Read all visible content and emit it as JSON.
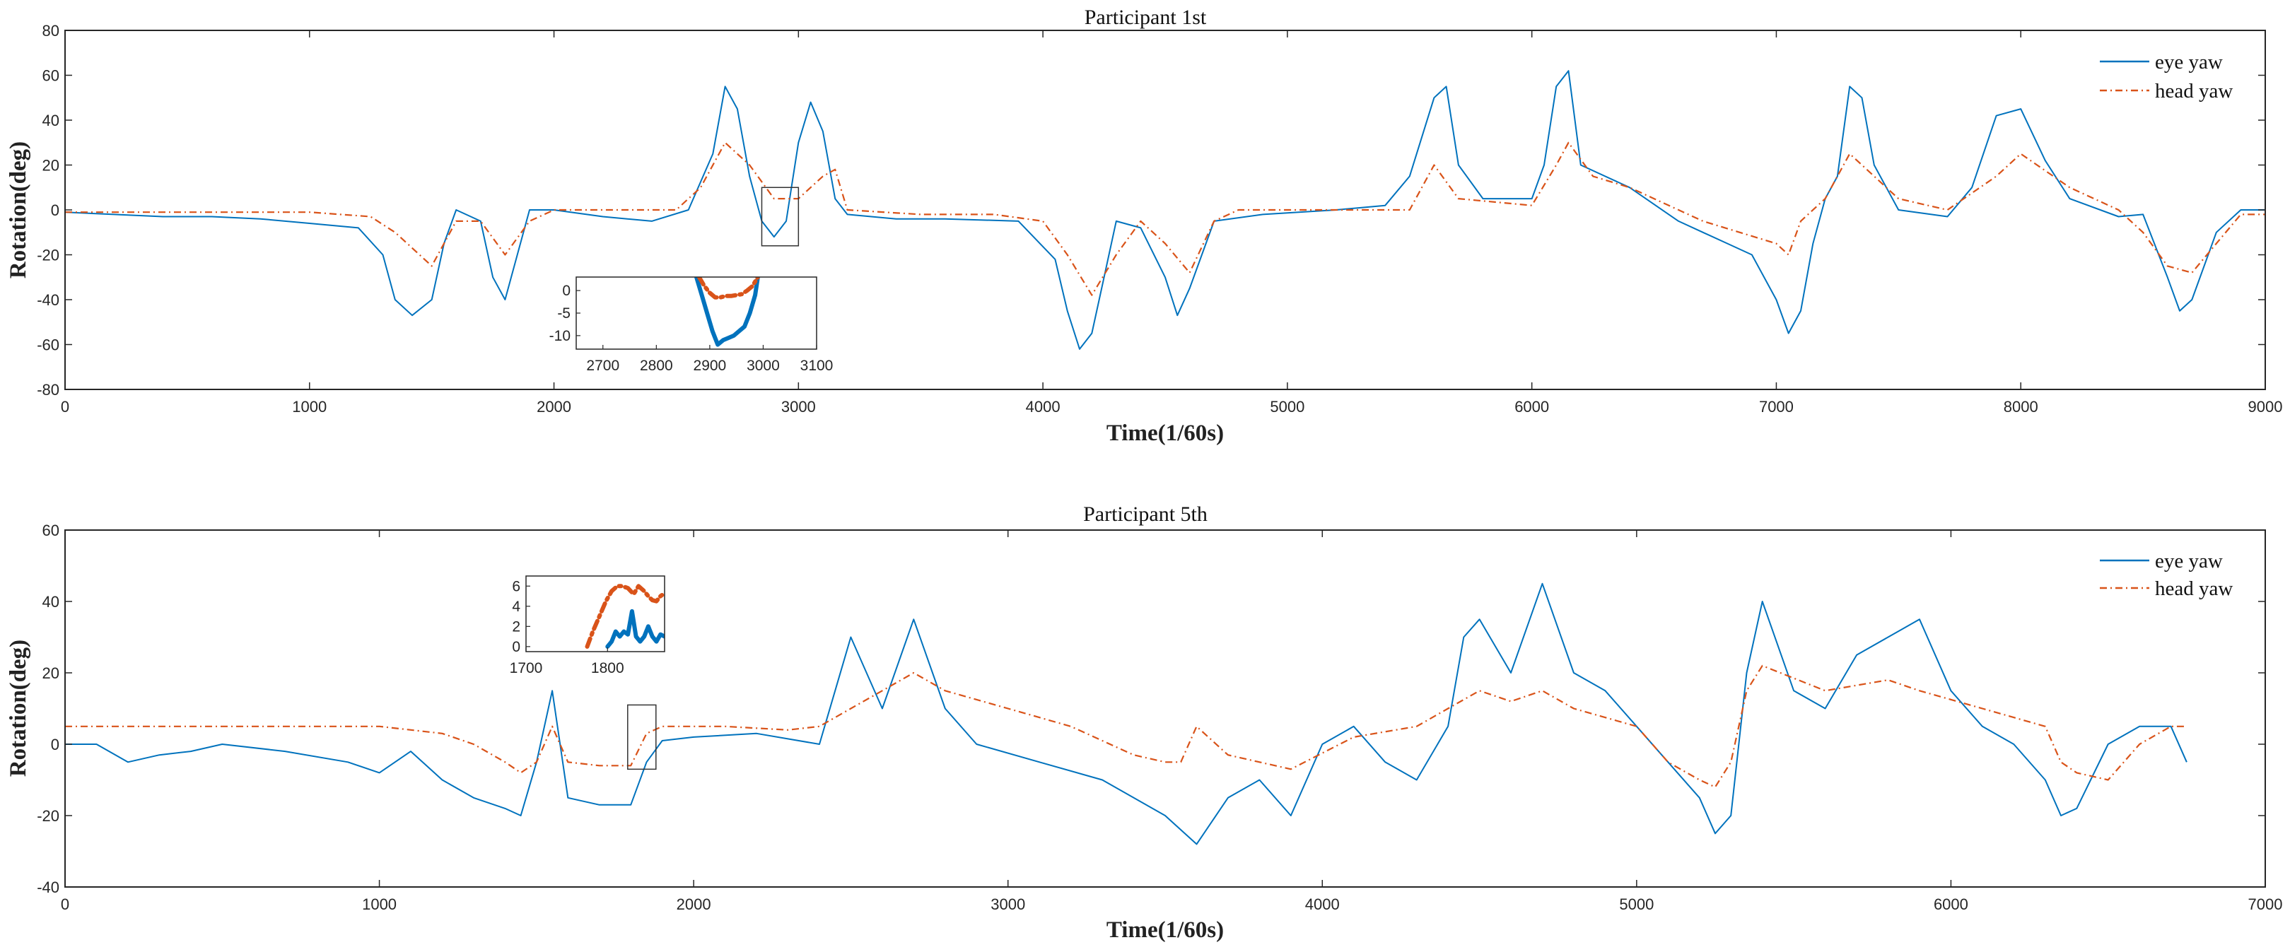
{
  "chart_data": [
    {
      "type": "line",
      "title": "Participant 1st",
      "xlabel": "Time(1/60s)",
      "ylabel": "Rotation(deg)",
      "xlim": [
        0,
        9000
      ],
      "ylim": [
        -80,
        80
      ],
      "xticks": [
        0,
        1000,
        2000,
        3000,
        4000,
        5000,
        6000,
        7000,
        8000,
        9000
      ],
      "yticks": [
        -80,
        -60,
        -40,
        -20,
        0,
        20,
        40,
        60,
        80
      ],
      "grid": false,
      "legend_position": "top-right",
      "series": [
        {
          "name": "eye yaw",
          "color": "#0072BD",
          "style": "solid",
          "x": [
            0,
            200,
            400,
            600,
            800,
            1000,
            1200,
            1300,
            1350,
            1420,
            1500,
            1550,
            1600,
            1700,
            1750,
            1800,
            1850,
            1900,
            2000,
            2200,
            2400,
            2550,
            2650,
            2700,
            2750,
            2800,
            2850,
            2900,
            2950,
            3000,
            3050,
            3100,
            3150,
            3200,
            3400,
            3600,
            3900,
            4050,
            4100,
            4150,
            4200,
            4250,
            4300,
            4400,
            4500,
            4550,
            4600,
            4700,
            4900,
            5200,
            5400,
            5500,
            5600,
            5650,
            5700,
            5800,
            6000,
            6050,
            6100,
            6150,
            6200,
            6400,
            6600,
            6700,
            6800,
            6900,
            7000,
            7050,
            7100,
            7150,
            7200,
            7250,
            7300,
            7350,
            7400,
            7500,
            7700,
            7800,
            7900,
            8000,
            8100,
            8200,
            8400,
            8500,
            8600,
            8650,
            8700,
            8800,
            8900,
            9000
          ],
          "y": [
            -1,
            -2,
            -3,
            -3,
            -4,
            -6,
            -8,
            -20,
            -40,
            -47,
            -40,
            -15,
            0,
            -5,
            -30,
            -40,
            -20,
            0,
            0,
            -3,
            -5,
            0,
            25,
            55,
            45,
            15,
            -5,
            -12,
            -5,
            30,
            48,
            35,
            5,
            -2,
            -4,
            -4,
            -5,
            -22,
            -45,
            -62,
            -55,
            -30,
            -5,
            -8,
            -30,
            -47,
            -35,
            -5,
            -2,
            0,
            2,
            15,
            50,
            55,
            20,
            5,
            5,
            20,
            55,
            62,
            20,
            10,
            -5,
            -10,
            -15,
            -20,
            -40,
            -55,
            -45,
            -15,
            5,
            15,
            55,
            50,
            20,
            0,
            -3,
            10,
            42,
            45,
            22,
            5,
            -3,
            -2,
            -30,
            -45,
            -40,
            -10,
            0,
            0
          ]
        },
        {
          "name": "head yaw",
          "color": "#D95319",
          "style": "dash-dot",
          "x": [
            0,
            500,
            1000,
            1250,
            1350,
            1450,
            1500,
            1600,
            1700,
            1800,
            1900,
            2000,
            2200,
            2500,
            2600,
            2700,
            2800,
            2900,
            3000,
            3100,
            3150,
            3200,
            3500,
            3800,
            4000,
            4100,
            4200,
            4300,
            4400,
            4500,
            4600,
            4700,
            4800,
            5000,
            5300,
            5500,
            5600,
            5700,
            6000,
            6100,
            6150,
            6250,
            6400,
            6700,
            7000,
            7050,
            7100,
            7200,
            7300,
            7400,
            7500,
            7700,
            7900,
            8000,
            8200,
            8400,
            8500,
            8600,
            8700,
            8800,
            8900,
            9000
          ],
          "y": [
            -1,
            -1,
            -1,
            -3,
            -10,
            -20,
            -25,
            -5,
            -5,
            -20,
            -5,
            0,
            0,
            0,
            10,
            30,
            20,
            5,
            5,
            15,
            18,
            0,
            -2,
            -2,
            -5,
            -20,
            -38,
            -20,
            -5,
            -15,
            -28,
            -5,
            0,
            0,
            0,
            0,
            20,
            5,
            2,
            20,
            30,
            15,
            10,
            -5,
            -15,
            -20,
            -5,
            5,
            25,
            15,
            5,
            0,
            15,
            25,
            10,
            0,
            -10,
            -25,
            -28,
            -15,
            -2,
            -2
          ]
        }
      ],
      "inset": {
        "xlim": [
          2650,
          3100
        ],
        "ylim": [
          -13,
          3
        ],
        "xticks": [
          2700,
          2800,
          2900,
          3000,
          3100
        ],
        "yticks": [
          -10,
          -5,
          0
        ],
        "zoom_box": {
          "x": [
            2850,
            3000
          ],
          "y": [
            -16,
            10
          ]
        },
        "series": [
          {
            "name": "eye yaw",
            "x": [
              2875,
              2885,
              2895,
              2905,
              2915,
              2925,
              2935,
              2945,
              2955,
              2965,
              2975,
              2985,
              2990
            ],
            "y": [
              3,
              -1,
              -5,
              -9,
              -12,
              -11,
              -10.5,
              -10,
              -9,
              -8,
              -5,
              -1,
              3
            ]
          },
          {
            "name": "head yaw",
            "x": [
              2880,
              2890,
              2900,
              2910,
              2920,
              2930,
              2940,
              2950,
              2960,
              2970,
              2980,
              2990
            ],
            "y": [
              3,
              1,
              -0.5,
              -1.5,
              -1.5,
              -1.2,
              -1.2,
              -1,
              -0.8,
              0,
              1,
              3
            ]
          }
        ]
      }
    },
    {
      "type": "line",
      "title": "Participant 5th",
      "xlabel": "Time(1/60s)",
      "ylabel": "Rotation(deg)",
      "xlim": [
        0,
        7000
      ],
      "ylim": [
        -40,
        60
      ],
      "xticks": [
        0,
        1000,
        2000,
        3000,
        4000,
        5000,
        6000,
        7000
      ],
      "yticks": [
        -40,
        -20,
        0,
        20,
        40,
        60
      ],
      "grid": false,
      "legend_position": "top-right",
      "series": [
        {
          "name": "eye yaw",
          "color": "#0072BD",
          "style": "solid",
          "x": [
            0,
            100,
            200,
            300,
            400,
            500,
            700,
            900,
            1000,
            1100,
            1200,
            1300,
            1400,
            1450,
            1500,
            1550,
            1600,
            1700,
            1800,
            1850,
            1900,
            2000,
            2200,
            2400,
            2450,
            2500,
            2600,
            2700,
            2800,
            2900,
            3100,
            3300,
            3500,
            3600,
            3700,
            3800,
            3900,
            4000,
            4100,
            4200,
            4300,
            4400,
            4450,
            4500,
            4600,
            4700,
            4800,
            4900,
            5000,
            5100,
            5200,
            5250,
            5300,
            5350,
            5400,
            5500,
            5600,
            5700,
            5800,
            5900,
            6000,
            6100,
            6200,
            6300,
            6350,
            6400,
            6500,
            6600,
            6700,
            6750
          ],
          "y": [
            0,
            0,
            -5,
            -3,
            -2,
            0,
            -2,
            -5,
            -8,
            -2,
            -10,
            -15,
            -18,
            -20,
            -5,
            15,
            -15,
            -17,
            -17,
            -5,
            1,
            2,
            3,
            0,
            15,
            30,
            10,
            35,
            10,
            0,
            -5,
            -10,
            -20,
            -28,
            -15,
            -10,
            -20,
            0,
            5,
            -5,
            -10,
            5,
            30,
            35,
            20,
            45,
            20,
            15,
            5,
            -5,
            -15,
            -25,
            -20,
            20,
            40,
            15,
            10,
            25,
            30,
            35,
            15,
            5,
            0,
            -10,
            -20,
            -18,
            0,
            5,
            5,
            -5
          ]
        },
        {
          "name": "head yaw",
          "color": "#D95319",
          "style": "dash-dot",
          "x": [
            0,
            500,
            1000,
            1200,
            1300,
            1400,
            1450,
            1500,
            1550,
            1600,
            1700,
            1800,
            1850,
            1900,
            2100,
            2300,
            2400,
            2500,
            2600,
            2700,
            2800,
            3000,
            3200,
            3400,
            3500,
            3550,
            3600,
            3700,
            3800,
            3900,
            4100,
            4300,
            4400,
            4500,
            4600,
            4700,
            4800,
            5000,
            5100,
            5200,
            5250,
            5300,
            5350,
            5400,
            5600,
            5800,
            5900,
            6100,
            6300,
            6350,
            6400,
            6500,
            6600,
            6700,
            6750
          ],
          "y": [
            5,
            5,
            5,
            3,
            0,
            -5,
            -8,
            -5,
            5,
            -5,
            -6,
            -6,
            3,
            5,
            5,
            4,
            5,
            10,
            15,
            20,
            15,
            10,
            5,
            -3,
            -5,
            -5,
            5,
            -3,
            -5,
            -7,
            2,
            5,
            10,
            15,
            12,
            15,
            10,
            5,
            -5,
            -10,
            -12,
            -5,
            15,
            22,
            15,
            18,
            15,
            10,
            5,
            -5,
            -8,
            -10,
            0,
            5,
            5
          ]
        }
      ],
      "inset": {
        "xlim": [
          1700,
          1870
        ],
        "ylim": [
          -0.5,
          7
        ],
        "xticks": [
          1700,
          1800
        ],
        "yticks": [
          0,
          2,
          4,
          6
        ],
        "zoom_box": {
          "x": [
            1790,
            1880
          ],
          "y": [
            -7,
            11
          ]
        },
        "series": [
          {
            "name": "eye yaw",
            "x": [
              1800,
              1805,
              1810,
              1815,
              1820,
              1825,
              1830,
              1835,
              1840,
              1845,
              1850,
              1855,
              1860,
              1865,
              1870
            ],
            "y": [
              0,
              0.5,
              1.5,
              1.0,
              1.5,
              1.2,
              3.5,
              1.0,
              0.5,
              1.0,
              2.0,
              1.0,
              0.5,
              1.2,
              1.0
            ]
          },
          {
            "name": "head yaw",
            "x": [
              1775,
              1782,
              1790,
              1798,
              1805,
              1812,
              1818,
              1825,
              1832,
              1838,
              1845,
              1850,
              1855,
              1860,
              1865,
              1870
            ],
            "y": [
              0,
              1.5,
              3,
              4.5,
              5.5,
              6.0,
              6.0,
              5.8,
              5.2,
              6.0,
              5.5,
              5.0,
              4.6,
              4.5,
              5.0,
              5.3
            ]
          }
        ]
      }
    }
  ]
}
